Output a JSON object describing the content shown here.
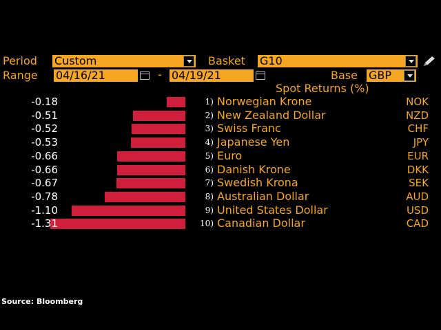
{
  "header": {
    "period_label": "Period",
    "period_value": "Custom",
    "basket_label": "Basket",
    "basket_value": "G10",
    "range_label": "Range",
    "range_start": "04/16/21",
    "range_sep": "-",
    "range_end": "04/19/21",
    "base_label": "Base",
    "base_value": "GBP",
    "pencil_icon": "pencil-icon"
  },
  "chart_data": {
    "type": "bar",
    "orientation": "horizontal",
    "title": "Spot Returns (%)",
    "categories": [
      "Norwegian Krone",
      "New Zealand Dollar",
      "Swiss Franc",
      "Japanese Yen",
      "Euro",
      "Danish Krone",
      "Swedish Krona",
      "Australian Dollar",
      "United States Dollar",
      "Canadian Dollar"
    ],
    "codes": [
      "NOK",
      "NZD",
      "CHF",
      "JPY",
      "EUR",
      "DKK",
      "SEK",
      "AUD",
      "USD",
      "CAD"
    ],
    "ranks": [
      "1)",
      "2)",
      "3)",
      "4)",
      "5)",
      "6)",
      "7)",
      "8)",
      "9)",
      "10)"
    ],
    "values": [
      -0.18,
      -0.51,
      -0.52,
      -0.53,
      -0.66,
      -0.66,
      -0.67,
      -0.78,
      -1.1,
      -1.31
    ],
    "labels": [
      "-0.18",
      "-0.51",
      "-0.52",
      "-0.53",
      "-0.66",
      "-0.66",
      "-0.67",
      "-0.78",
      "-1.10",
      "-1.31"
    ],
    "bar_color": "#d01f3c"
  },
  "footer": {
    "source": "Source: Bloomberg"
  }
}
